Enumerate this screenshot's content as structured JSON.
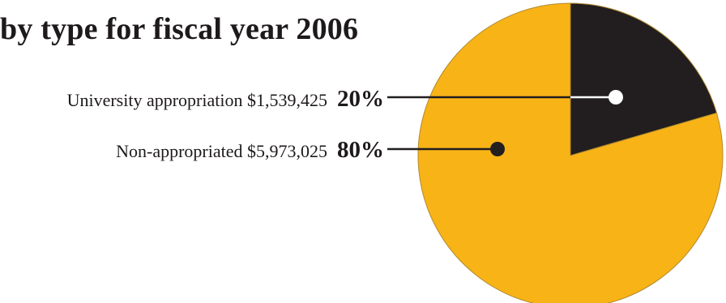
{
  "chart_data": {
    "type": "pie",
    "title": "by type for fiscal year 2006",
    "slices": [
      {
        "label": "University appropriation",
        "amount": "$1,539,425",
        "percent": "20%",
        "value": 1539425,
        "color": "#221e1f",
        "dot_color": "#ffffff"
      },
      {
        "label": "Non-appropriated",
        "amount": "$5,973,025",
        "percent": "80%",
        "value": 5973025,
        "color": "#f8b317",
        "dot_color": "#221e1f"
      }
    ]
  }
}
